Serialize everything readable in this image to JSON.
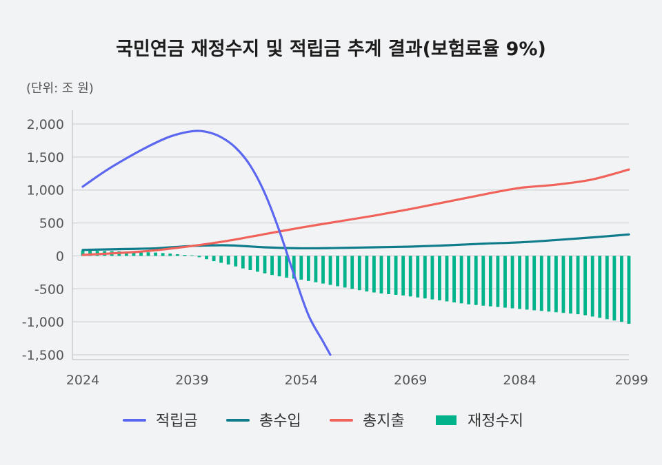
{
  "chart_data": {
    "type": "line+bar",
    "title": "국민연금 재정수지 및 적립금 추계 결과(보험료율 9%)",
    "unit": "(단위: 조 원)",
    "xlabel": "",
    "ylabel": "",
    "ylim": [
      -1500,
      2000
    ],
    "y_ticks": [
      2000,
      1500,
      1000,
      500,
      0,
      -500,
      -1000,
      -1500
    ],
    "y_tick_labels": [
      "2,000",
      "1,500",
      "1,000",
      "500",
      "0",
      "-500",
      "-1,000",
      "-1,500"
    ],
    "xlim": [
      2024,
      2099
    ],
    "x_ticks": [
      2024,
      2039,
      2054,
      2069,
      2084,
      2099
    ],
    "x_tick_labels": [
      "2024",
      "2039",
      "2054",
      "2069",
      "2084",
      "2099"
    ],
    "grid": true,
    "legend_position": "bottom",
    "series": [
      {
        "name": "적립금",
        "type": "line",
        "color": "#5b67f0",
        "x": [
          2024,
          2027,
          2030,
          2033,
          2036,
          2039,
          2041,
          2043,
          2045,
          2047,
          2049,
          2051,
          2053,
          2055,
          2057,
          2058
        ],
        "values": [
          1050,
          1280,
          1480,
          1660,
          1810,
          1890,
          1880,
          1800,
          1640,
          1370,
          950,
          380,
          -280,
          -900,
          -1300,
          -1500
        ]
      },
      {
        "name": "총수입",
        "type": "line",
        "color": "#0f7c8c",
        "x": [
          2024,
          2030,
          2034,
          2039,
          2044,
          2049,
          2054,
          2059,
          2064,
          2069,
          2074,
          2079,
          2084,
          2089,
          2094,
          2099
        ],
        "values": [
          90,
          105,
          115,
          150,
          160,
          130,
          115,
          120,
          130,
          140,
          160,
          185,
          205,
          240,
          280,
          325
        ]
      },
      {
        "name": "총지출",
        "type": "line",
        "color": "#f0635a",
        "x": [
          2024,
          2030,
          2034,
          2039,
          2044,
          2049,
          2054,
          2059,
          2064,
          2069,
          2074,
          2079,
          2084,
          2089,
          2094,
          2099
        ],
        "values": [
          15,
          50,
          85,
          150,
          230,
          330,
          430,
          520,
          610,
          710,
          820,
          930,
          1030,
          1080,
          1160,
          1310
        ]
      },
      {
        "name": "재정수지",
        "type": "bar",
        "color": "#00b38a",
        "x": [
          2024,
          2025,
          2026,
          2027,
          2028,
          2029,
          2030,
          2031,
          2032,
          2033,
          2034,
          2035,
          2036,
          2037,
          2038,
          2039,
          2040,
          2041,
          2042,
          2043,
          2044,
          2045,
          2046,
          2047,
          2048,
          2049,
          2050,
          2051,
          2052,
          2053,
          2054,
          2055,
          2056,
          2057,
          2058,
          2059,
          2060,
          2061,
          2062,
          2063,
          2064,
          2065,
          2066,
          2067,
          2068,
          2069,
          2070,
          2071,
          2072,
          2073,
          2074,
          2075,
          2076,
          2077,
          2078,
          2079,
          2080,
          2081,
          2082,
          2083,
          2084,
          2085,
          2086,
          2087,
          2088,
          2089,
          2090,
          2091,
          2092,
          2093,
          2094,
          2095,
          2096,
          2097,
          2098,
          2099
        ],
        "values": [
          80,
          78,
          76,
          74,
          72,
          70,
          68,
          64,
          60,
          55,
          50,
          42,
          35,
          25,
          15,
          8,
          -20,
          -50,
          -80,
          -105,
          -130,
          -160,
          -190,
          -215,
          -240,
          -265,
          -290,
          -310,
          -330,
          -345,
          -360,
          -380,
          -400,
          -420,
          -440,
          -460,
          -480,
          -500,
          -520,
          -540,
          -555,
          -570,
          -580,
          -590,
          -600,
          -615,
          -630,
          -645,
          -660,
          -675,
          -690,
          -705,
          -720,
          -735,
          -745,
          -755,
          -765,
          -775,
          -785,
          -795,
          -805,
          -815,
          -825,
          -835,
          -845,
          -855,
          -865,
          -875,
          -885,
          -900,
          -920,
          -940,
          -960,
          -980,
          -1000,
          -1030
        ]
      }
    ]
  }
}
